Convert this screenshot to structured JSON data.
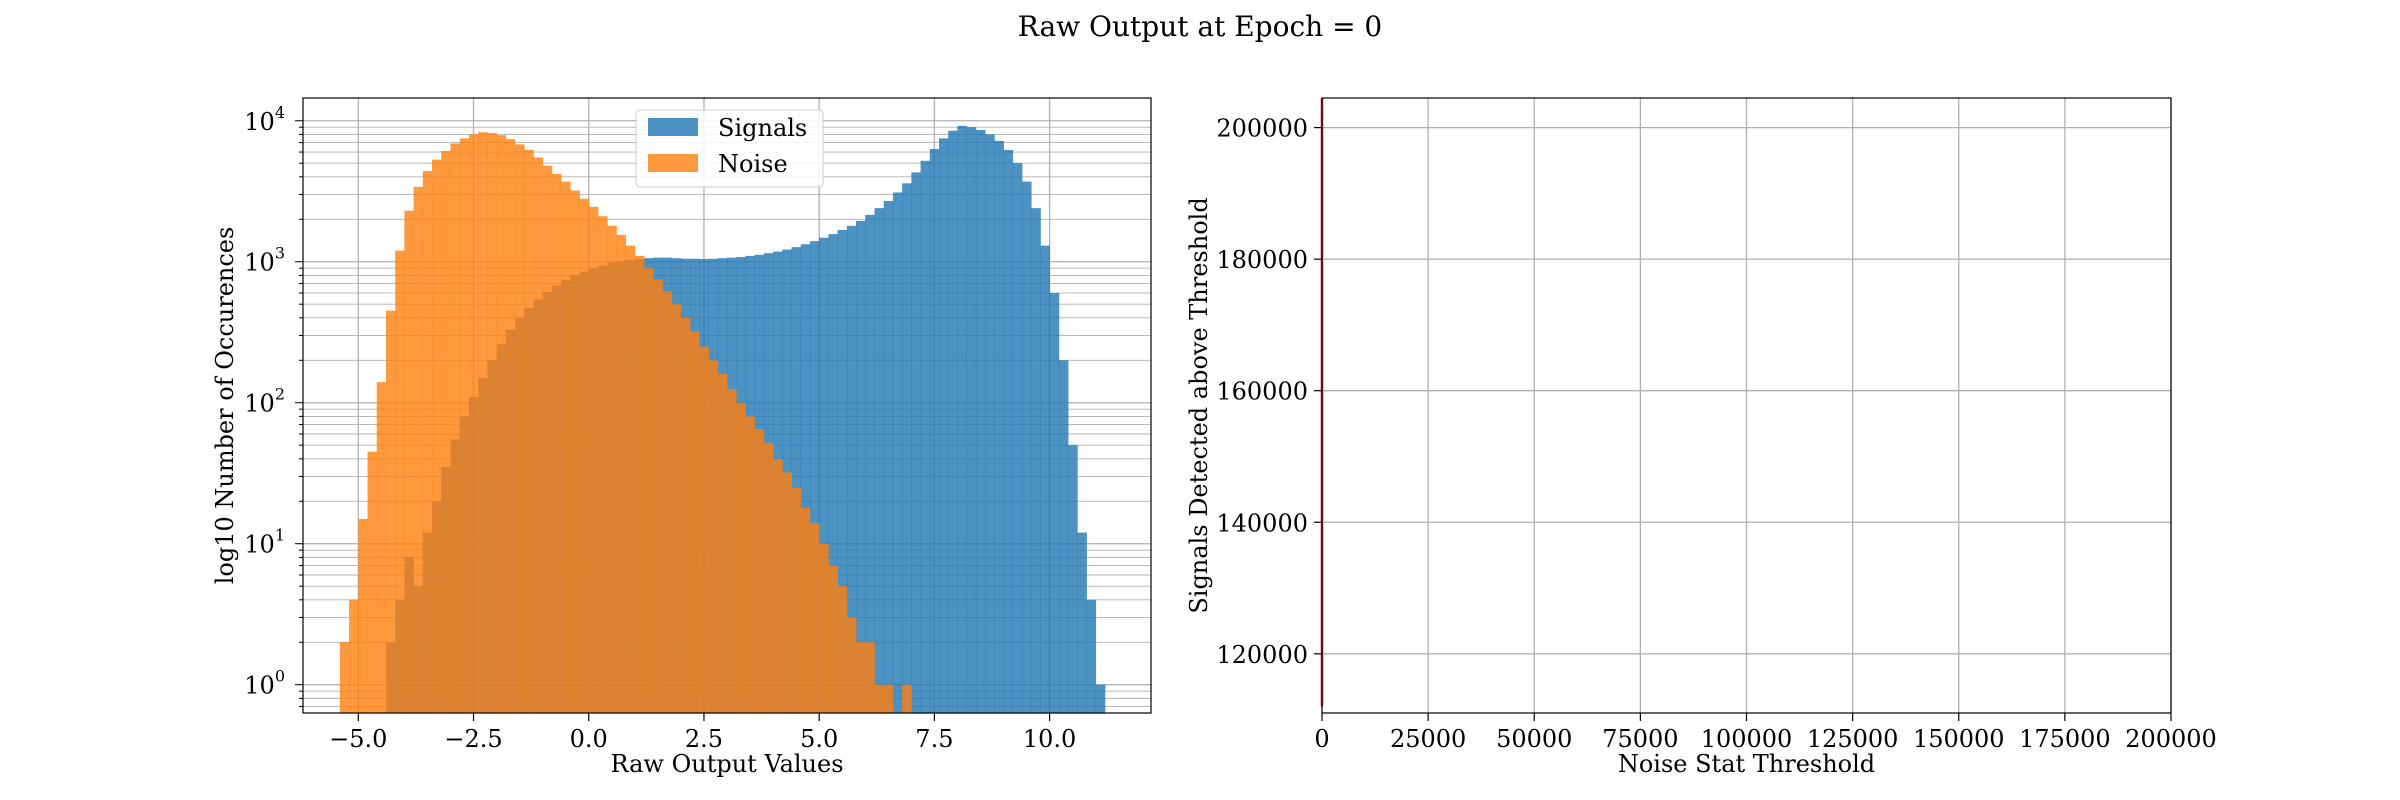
{
  "suptitle": "Raw Output at Epoch = 0",
  "chart_data": [
    {
      "type": "bar",
      "subtype": "histogram",
      "title": "",
      "xlabel": "Raw Output Values",
      "ylabel": "log10 Number of Occurences",
      "y_scale": "log",
      "xlim": [
        -6.2,
        12.2
      ],
      "ylim": [
        0.63,
        14500
      ],
      "x_ticks": [
        -5.0,
        -2.5,
        0.0,
        2.5,
        5.0,
        7.5,
        10.0
      ],
      "x_tick_labels": [
        "−5.0",
        "−2.5",
        "0.0",
        "2.5",
        "5.0",
        "7.5",
        "10.0"
      ],
      "y_ticks": [
        1,
        10,
        100,
        1000,
        10000
      ],
      "y_tick_labels": [
        {
          "base": "10",
          "exp": "0"
        },
        {
          "base": "10",
          "exp": "1"
        },
        {
          "base": "10",
          "exp": "2"
        },
        {
          "base": "10",
          "exp": "3"
        },
        {
          "base": "10",
          "exp": "4"
        }
      ],
      "grid": "on (major and minor)",
      "legend": "upper center",
      "bin_start": -5.4,
      "bin_width": 0.2,
      "series": [
        {
          "name": "Signals",
          "color": "#1f77b4",
          "alpha": 0.8,
          "counts": [
            0,
            0,
            0,
            0,
            0,
            2,
            4,
            8,
            5,
            12,
            20,
            35,
            55,
            80,
            110,
            150,
            200,
            260,
            330,
            400,
            470,
            540,
            610,
            680,
            740,
            800,
            850,
            900,
            940,
            980,
            1010,
            1030,
            1050,
            1060,
            1070,
            1070,
            1060,
            1050,
            1050,
            1045,
            1050,
            1060,
            1070,
            1080,
            1100,
            1120,
            1150,
            1180,
            1220,
            1270,
            1330,
            1400,
            1480,
            1570,
            1680,
            1800,
            1950,
            2150,
            2400,
            2700,
            3100,
            3600,
            4300,
            5200,
            6300,
            7500,
            8500,
            9200,
            9000,
            8600,
            8000,
            7200,
            6200,
            5000,
            3700,
            2400,
            1300,
            600,
            200,
            50,
            12,
            4,
            1
          ]
        },
        {
          "name": "Noise",
          "color": "#ff7f0e",
          "alpha": 0.8,
          "counts": [
            2,
            4,
            15,
            45,
            140,
            450,
            1200,
            2300,
            3400,
            4400,
            5300,
            6100,
            6900,
            7500,
            8000,
            8300,
            8200,
            7900,
            7400,
            6800,
            6200,
            5500,
            4800,
            4200,
            3700,
            3200,
            2800,
            2450,
            2100,
            1800,
            1550,
            1300,
            1100,
            900,
            750,
            620,
            500,
            400,
            320,
            250,
            200,
            160,
            125,
            100,
            80,
            65,
            52,
            40,
            32,
            25,
            18,
            14,
            10,
            7,
            5,
            3,
            2,
            2,
            1,
            1,
            0,
            1,
            0
          ]
        }
      ]
    },
    {
      "type": "line",
      "title": "",
      "xlabel": "Noise Stat Threshold",
      "ylabel": "Signals Detected above Threshold",
      "xlim": [
        0,
        200000
      ],
      "ylim": [
        111000,
        204500
      ],
      "x_ticks": [
        0,
        25000,
        50000,
        75000,
        100000,
        125000,
        150000,
        175000,
        200000
      ],
      "x_tick_labels": [
        "0",
        "25000",
        "50000",
        "75000",
        "100000",
        "125000",
        "150000",
        "175000",
        "200000"
      ],
      "y_ticks": [
        120000,
        140000,
        160000,
        180000,
        200000
      ],
      "y_tick_labels": [
        "120000",
        "140000",
        "160000",
        "180000",
        "200000"
      ],
      "grid": "on",
      "series": [
        {
          "color": "#d62728",
          "points": [
            [
              0,
              112000
            ],
            [
              0,
              204500
            ]
          ]
        }
      ]
    }
  ]
}
